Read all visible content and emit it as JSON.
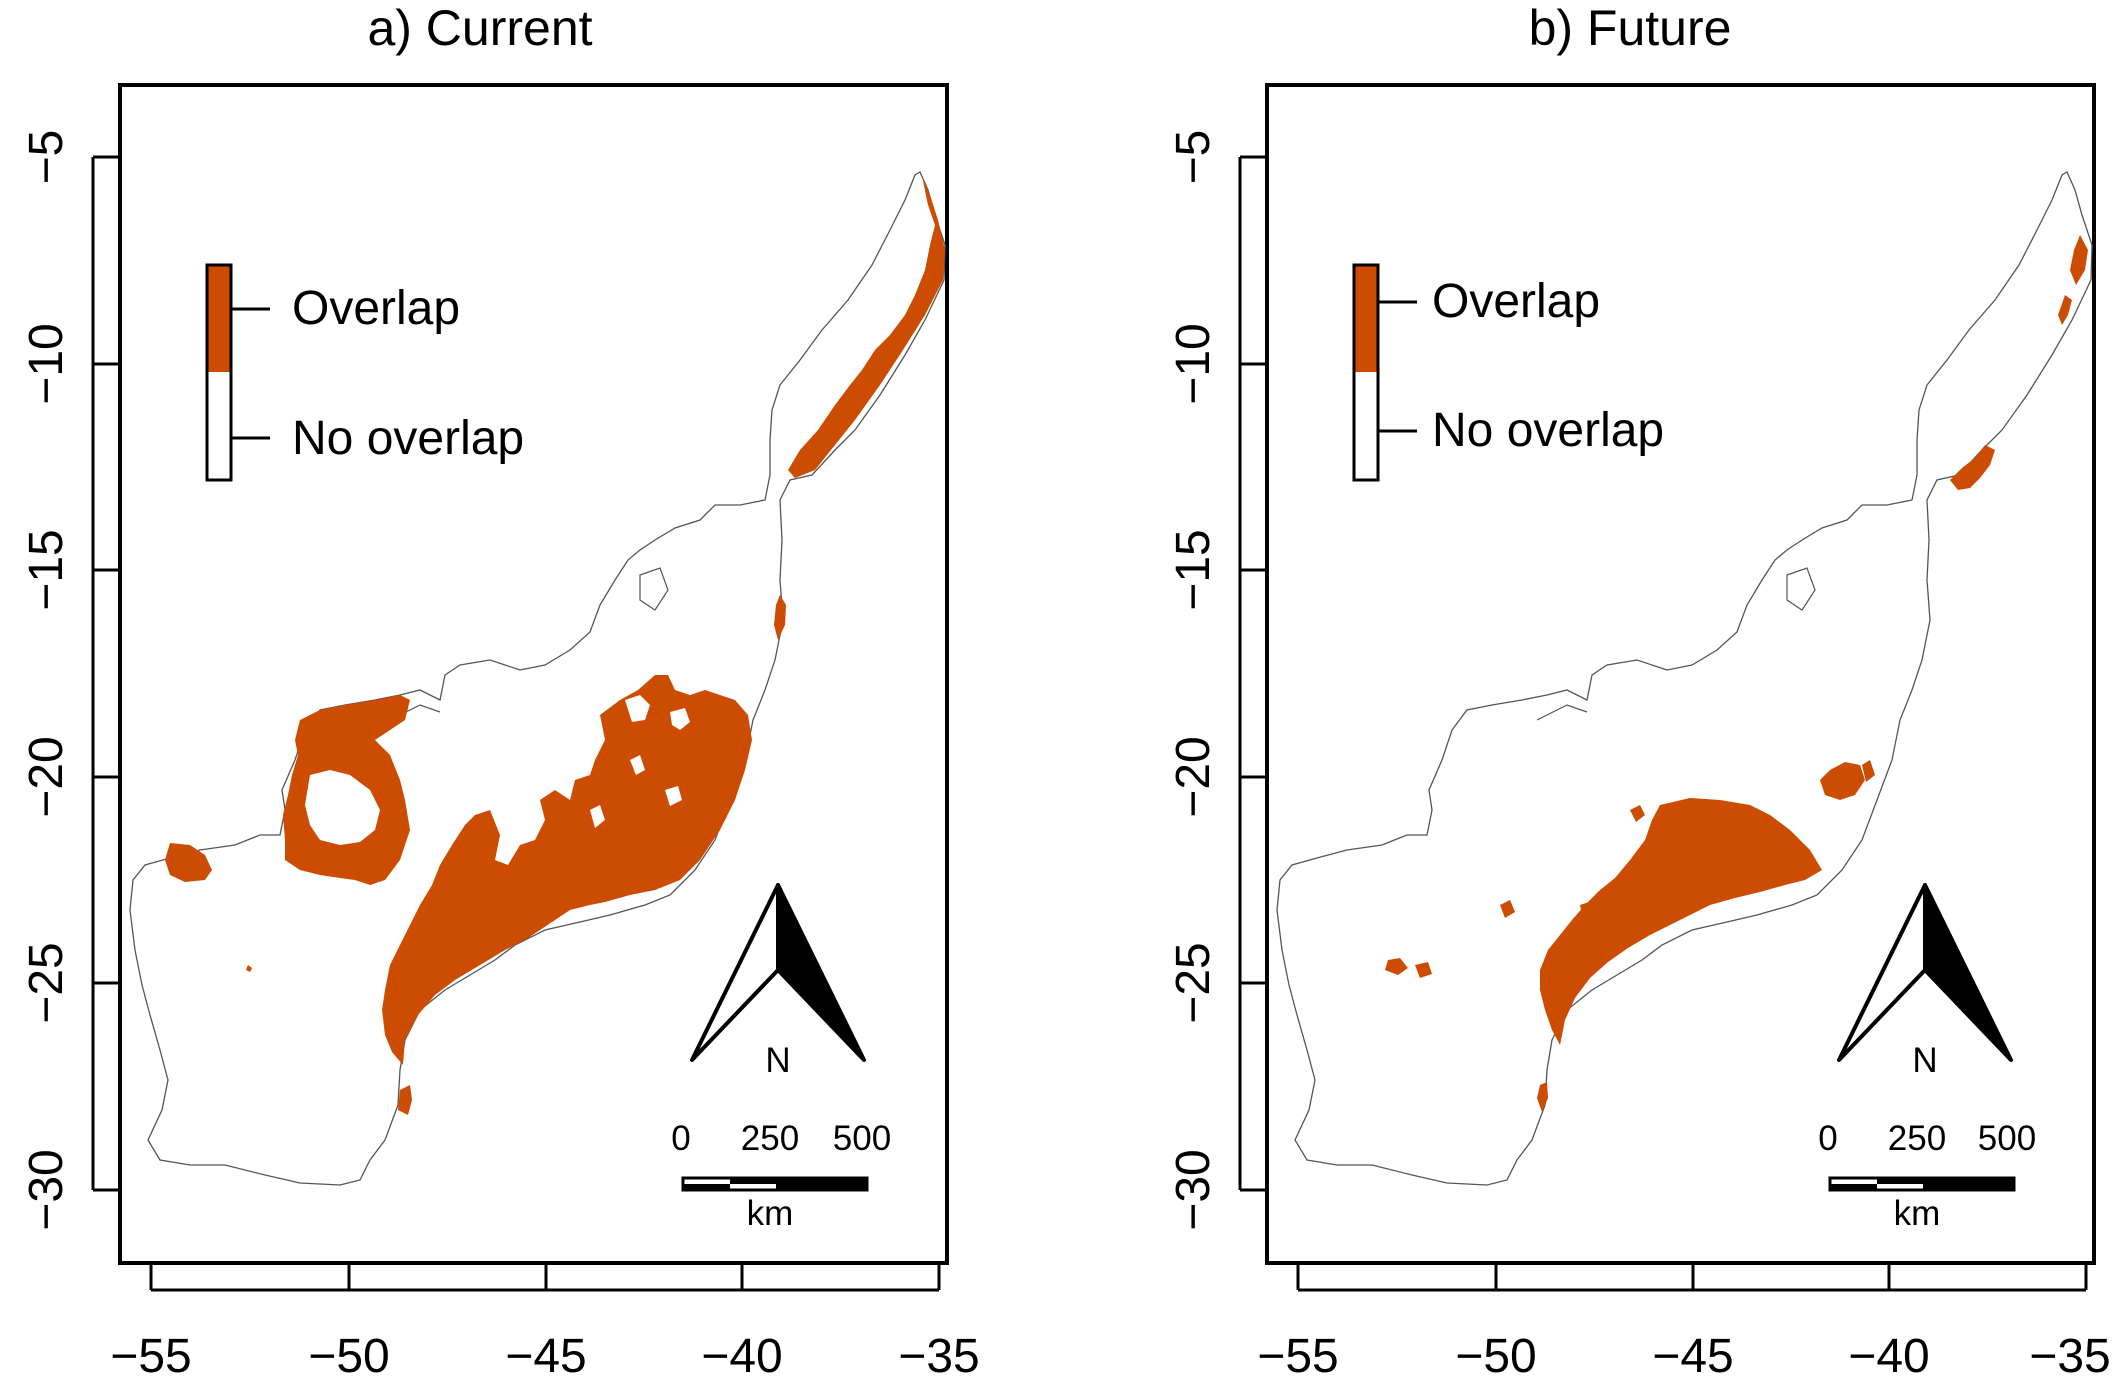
{
  "colors": {
    "overlap": "#cc4c02",
    "no_overlap": "#ffffff",
    "outline": "#555555"
  },
  "chart_data": [
    {
      "type": "map",
      "title": "a) Current",
      "x_ticks": [
        "−55",
        "−50",
        "−45",
        "−40",
        "−35"
      ],
      "y_ticks": [
        "−5",
        "−10",
        "−15",
        "−20",
        "−25",
        "−30"
      ],
      "xlim": [
        -55.8,
        -34.6
      ],
      "ylim": [
        -31.8,
        -3.3
      ],
      "legend": {
        "items": [
          "Overlap",
          "No overlap"
        ]
      },
      "north_arrow": "N",
      "scale_bar": {
        "labels": [
          "0",
          "250",
          "500"
        ],
        "unit": "km"
      }
    },
    {
      "type": "map",
      "title": "b) Future",
      "x_ticks": [
        "−55",
        "−50",
        "−45",
        "−40",
        "−35"
      ],
      "y_ticks": [
        "−5",
        "−10",
        "−15",
        "−20",
        "−25",
        "−30"
      ],
      "xlim": [
        -55.8,
        -34.6
      ],
      "ylim": [
        -31.8,
        -3.3
      ],
      "legend": {
        "items": [
          "Overlap",
          "No overlap"
        ]
      },
      "north_arrow": "N",
      "scale_bar": {
        "labels": [
          "0",
          "250",
          "500"
        ],
        "unit": "km"
      }
    }
  ]
}
